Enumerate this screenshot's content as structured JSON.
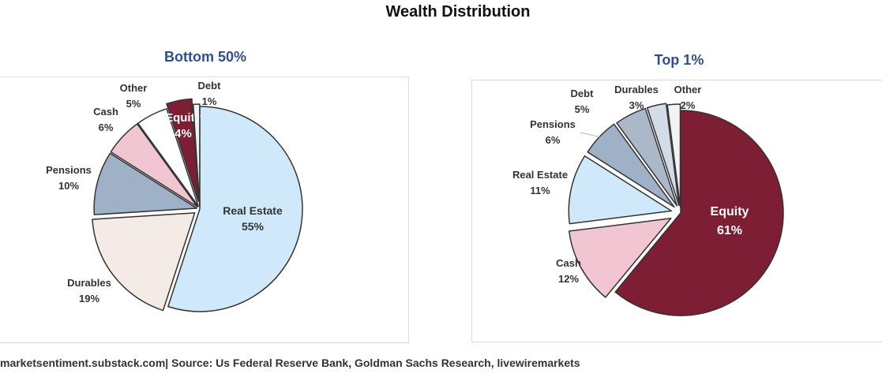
{
  "title": "Wealth Distribution",
  "footer": "marketsentiment.substack.com| Source: Us Federal Reserve Bank, Goldman Sachs Research, livewiremarkets",
  "colors": {
    "real_estate": "#cfe9fb",
    "durables": "#f4ebe6",
    "pensions": "#9fb1c7",
    "cash": "#f2c5d2",
    "other": "#ffffff",
    "equity": "#7d1e35",
    "debt": "#f3f3f3",
    "durables_top": "#d2dbe6",
    "debt_top": "#aab8c8"
  },
  "chart_data": [
    {
      "type": "pie",
      "title": "Bottom 50%",
      "series": [
        {
          "values": [
            {
              "label": "Real Estate",
              "pct_label": "55%",
              "value": 55,
              "color": "#cfe9fb"
            },
            {
              "label": "Durables",
              "pct_label": "19%",
              "value": 19,
              "color": "#f4ebe6"
            },
            {
              "label": "Pensions",
              "pct_label": "10%",
              "value": 10,
              "color": "#9fb1c7"
            },
            {
              "label": "Cash",
              "pct_label": "6%",
              "value": 6,
              "color": "#f2c5d2"
            },
            {
              "label": "Other",
              "pct_label": "5%",
              "value": 5,
              "color": "#ffffff"
            },
            {
              "label": "Equity",
              "pct_label": "4%",
              "value": 4,
              "color": "#7d1e35"
            },
            {
              "label": "Debt",
              "pct_label": "1%",
              "value": 1,
              "color": "#f3f3f3"
            }
          ]
        }
      ]
    },
    {
      "type": "pie",
      "title": "Top 1%",
      "series": [
        {
          "values": [
            {
              "label": "Equity",
              "pct_label": "61%",
              "value": 61,
              "color": "#7d1e35"
            },
            {
              "label": "Cash",
              "pct_label": "12%",
              "value": 12,
              "color": "#f2c5d2"
            },
            {
              "label": "Real Estate",
              "pct_label": "11%",
              "value": 11,
              "color": "#cfe9fb"
            },
            {
              "label": "Pensions",
              "pct_label": "6%",
              "value": 6,
              "color": "#9fb1c7"
            },
            {
              "label": "Debt",
              "pct_label": "5%",
              "value": 5,
              "color": "#aab8c8"
            },
            {
              "label": "Durables",
              "pct_label": "3%",
              "value": 3,
              "color": "#d2dbe6"
            },
            {
              "label": "Other",
              "pct_label": "2%",
              "value": 2,
              "color": "#f3f3f3"
            }
          ]
        }
      ]
    }
  ]
}
